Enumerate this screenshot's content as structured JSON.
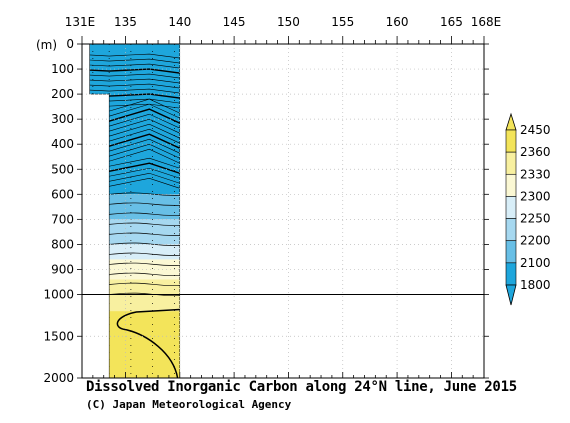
{
  "chart_data": {
    "type": "heatmap",
    "title": "Dissolved Inorganic Carbon along 24°N line, June 2015",
    "credit": "(C) Japan Meteorological Agency",
    "x_ticks": [
      {
        "value": 131,
        "label": "131E"
      },
      {
        "value": 135,
        "label": "135"
      },
      {
        "value": 140,
        "label": "140"
      },
      {
        "value": 145,
        "label": "145"
      },
      {
        "value": 150,
        "label": "150"
      },
      {
        "value": 155,
        "label": "155"
      },
      {
        "value": 160,
        "label": "160"
      },
      {
        "value": 165,
        "label": "165"
      },
      {
        "value": 168,
        "label": "168E"
      }
    ],
    "xlim": [
      131,
      168
    ],
    "depth_unit": "(m)",
    "depth_ticks_upper": [
      0,
      100,
      200,
      300,
      400,
      500,
      600,
      700,
      800,
      900,
      1000
    ],
    "depth_ticks_lower": [
      1000,
      1500,
      2000
    ],
    "color_levels": [
      {
        "label": "1800",
        "color": "#1ea6dc"
      },
      {
        "label": "2100",
        "color": "#1ea6dc"
      },
      {
        "label": "2200",
        "color": "#68bfe6"
      },
      {
        "label": "2250",
        "color": "#a6d8f0"
      },
      {
        "label": "2300",
        "color": "#d8eef8"
      },
      {
        "label": "2330",
        "color": "#fbf8d4"
      },
      {
        "label": "2360",
        "color": "#f8f0a0"
      },
      {
        "label": "2450",
        "color": "#f3e45a"
      }
    ],
    "section_profile": [
      {
        "depth": 0,
        "lon_west": 131.7,
        "lon_east": 140.0
      },
      {
        "depth": 200,
        "lon_west": 131.7,
        "lon_east": 140.0
      },
      {
        "depth": 200,
        "lon_west": 133.5,
        "lon_east": 140.0
      },
      {
        "depth": 2000,
        "lon_west": 133.5,
        "lon_east": 140.0
      }
    ],
    "station_lons": [
      132.0,
      133.5,
      135.5,
      137.5,
      139.5
    ],
    "grid": true
  }
}
